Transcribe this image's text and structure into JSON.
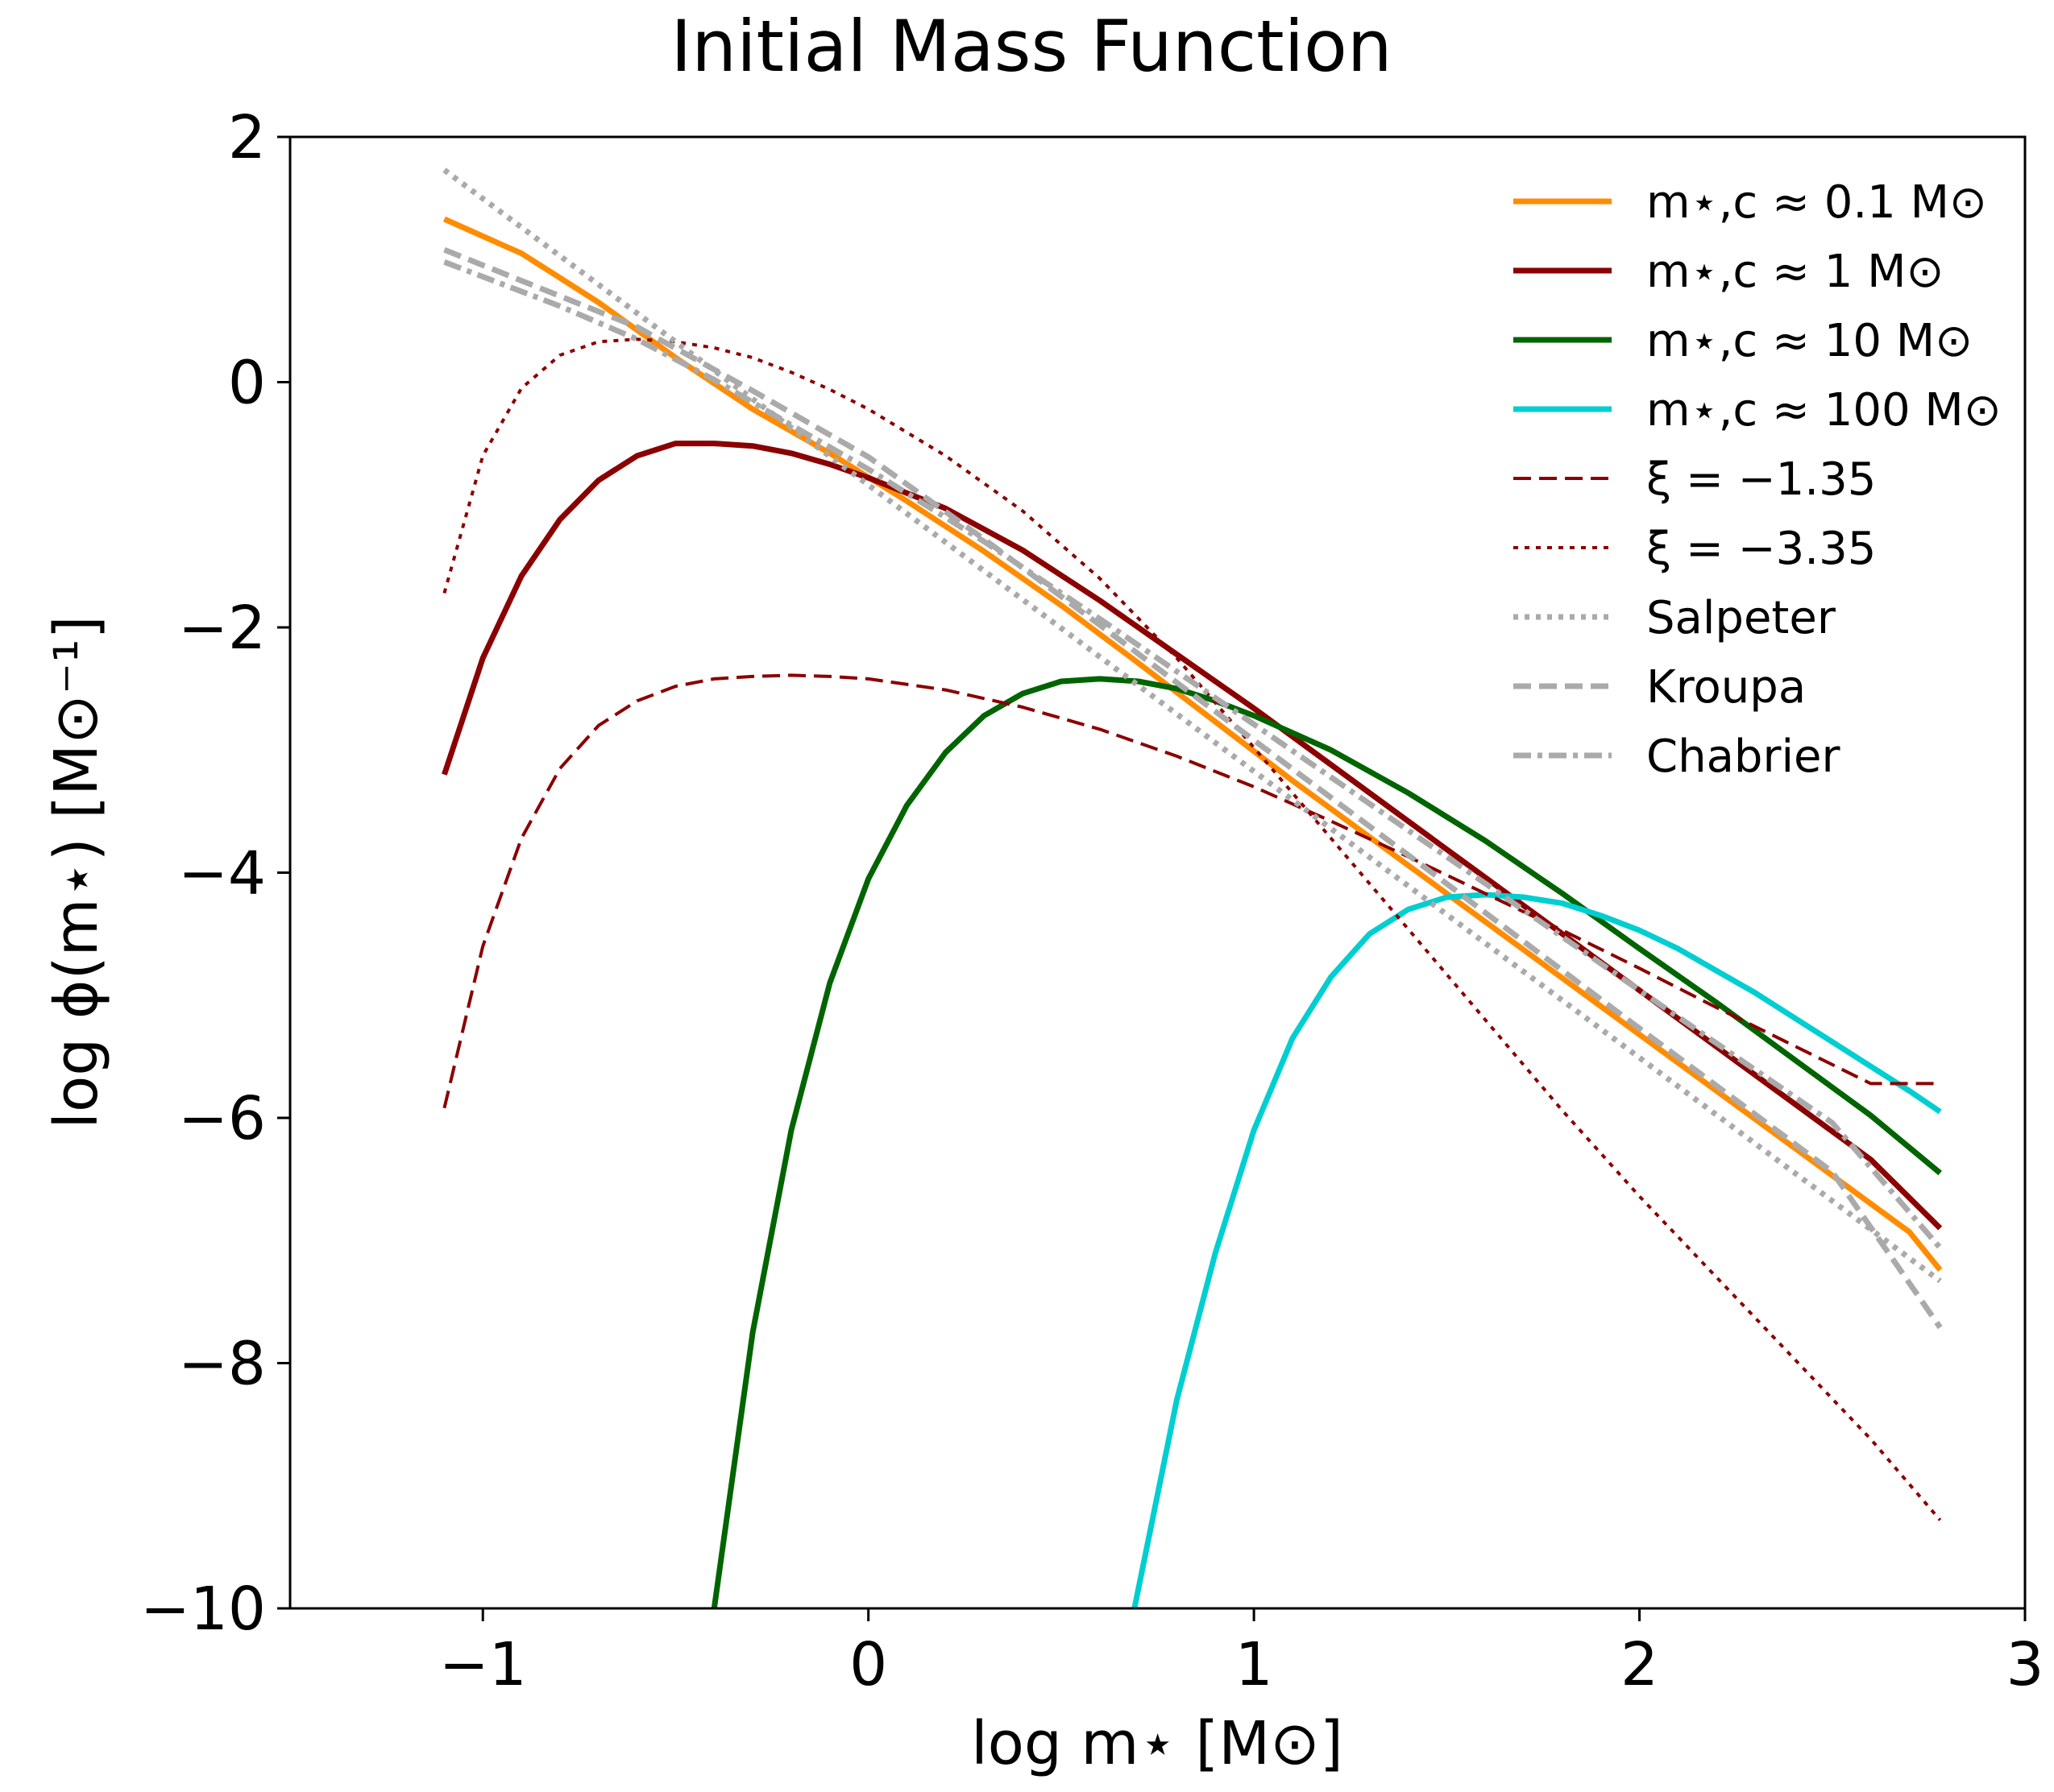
{
  "chart_data": {
    "type": "line",
    "title": "Initial Mass Function",
    "xlabel": "log m⋆  [M⊙]",
    "ylabel": "log ϕ(m⋆) [M⊙⁻¹]",
    "xlim": [
      -1.5,
      3
    ],
    "ylim": [
      -10,
      2
    ],
    "xticks": [
      -1,
      0,
      1,
      2,
      3
    ],
    "yticks": [
      -10,
      -8,
      -6,
      -4,
      -2,
      0,
      2
    ],
    "xtick_labels": [
      "−1",
      "0",
      "1",
      "2",
      "3"
    ],
    "ytick_labels": [
      "−10",
      "−8",
      "−6",
      "−4",
      "−2",
      "0",
      "2"
    ],
    "legend_position": "top-right",
    "series": [
      {
        "name": "m⋆,c ≈ 0.1 M⊙",
        "color": "#ff8c00",
        "style": "solid",
        "thick": true,
        "x": [
          -1.1,
          -0.9,
          -0.7,
          -0.5,
          -0.3,
          -0.1,
          0.1,
          0.3,
          0.5,
          0.7,
          0.9,
          1.1,
          1.3,
          1.5,
          1.7,
          1.9,
          2.1,
          2.3,
          2.5,
          2.7,
          2.78
        ],
        "y": [
          1.33,
          1.05,
          0.65,
          0.2,
          -0.22,
          -0.58,
          -0.97,
          -1.38,
          -1.82,
          -2.29,
          -2.77,
          -3.25,
          -3.71,
          -4.17,
          -4.63,
          -5.09,
          -5.55,
          -6.01,
          -6.47,
          -6.93,
          -7.24
        ]
      },
      {
        "name": "m⋆,c ≈ 1 M⊙",
        "color": "#8b0000",
        "style": "solid",
        "thick": true,
        "x": [
          -1.1,
          -1.0,
          -0.9,
          -0.8,
          -0.7,
          -0.6,
          -0.5,
          -0.4,
          -0.3,
          -0.2,
          -0.1,
          0.0,
          0.2,
          0.4,
          0.6,
          0.8,
          1.0,
          1.2,
          1.4,
          1.6,
          1.8,
          2.0,
          2.2,
          2.4,
          2.6,
          2.78
        ],
        "y": [
          -3.2,
          -2.25,
          -1.58,
          -1.12,
          -0.8,
          -0.6,
          -0.5,
          -0.5,
          -0.52,
          -0.58,
          -0.67,
          -0.78,
          -1.03,
          -1.37,
          -1.78,
          -2.22,
          -2.66,
          -3.12,
          -3.58,
          -4.04,
          -4.5,
          -4.96,
          -5.42,
          -5.88,
          -6.34,
          -6.9
        ]
      },
      {
        "name": "m⋆,c ≈ 10 M⊙",
        "color": "#006400",
        "style": "solid",
        "thick": true,
        "x": [
          -0.4,
          -0.3,
          -0.2,
          -0.1,
          0.0,
          0.1,
          0.2,
          0.3,
          0.4,
          0.5,
          0.6,
          0.7,
          0.8,
          0.9,
          1.0,
          1.2,
          1.4,
          1.6,
          1.8,
          2.0,
          2.2,
          2.4,
          2.6,
          2.78
        ],
        "y": [
          -10.0,
          -7.75,
          -6.1,
          -4.9,
          -4.05,
          -3.45,
          -3.02,
          -2.72,
          -2.54,
          -2.44,
          -2.42,
          -2.44,
          -2.5,
          -2.6,
          -2.72,
          -3.0,
          -3.35,
          -3.74,
          -4.17,
          -4.62,
          -5.06,
          -5.52,
          -5.98,
          -6.45
        ]
      },
      {
        "name": "m⋆,c ≈ 100 M⊙",
        "color": "#00ced1",
        "style": "solid",
        "thick": true,
        "x": [
          0.69,
          0.8,
          0.9,
          1.0,
          1.1,
          1.2,
          1.3,
          1.4,
          1.5,
          1.6,
          1.7,
          1.8,
          1.9,
          2.0,
          2.1,
          2.2,
          2.3,
          2.4,
          2.5,
          2.6,
          2.7,
          2.78
        ],
        "y": [
          -10.0,
          -8.3,
          -7.1,
          -6.1,
          -5.35,
          -4.85,
          -4.5,
          -4.3,
          -4.2,
          -4.18,
          -4.2,
          -4.25,
          -4.35,
          -4.47,
          -4.62,
          -4.8,
          -4.98,
          -5.18,
          -5.38,
          -5.58,
          -5.78,
          -5.95
        ]
      },
      {
        "name": "ξ = −1.35",
        "color": "#8b0000",
        "style": "dashed",
        "thick": false,
        "x": [
          -1.1,
          -1.0,
          -0.9,
          -0.8,
          -0.7,
          -0.6,
          -0.5,
          -0.4,
          -0.3,
          -0.2,
          -0.1,
          0.0,
          0.2,
          0.4,
          0.6,
          0.8,
          1.0,
          1.2,
          1.4,
          1.6,
          1.8,
          2.0,
          2.2,
          2.4,
          2.6,
          2.78
        ],
        "y": [
          -5.92,
          -4.6,
          -3.72,
          -3.15,
          -2.8,
          -2.6,
          -2.48,
          -2.42,
          -2.4,
          -2.39,
          -2.4,
          -2.42,
          -2.51,
          -2.65,
          -2.83,
          -3.05,
          -3.3,
          -3.58,
          -3.87,
          -4.17,
          -4.47,
          -4.78,
          -5.1,
          -5.41,
          -5.72,
          -5.72
        ]
      },
      {
        "name": "ξ = −3.35",
        "color": "#8b0000",
        "style": "dotted",
        "thick": false,
        "x": [
          -1.1,
          -1.0,
          -0.9,
          -0.8,
          -0.7,
          -0.6,
          -0.5,
          -0.4,
          -0.3,
          -0.2,
          -0.1,
          0.0,
          0.2,
          0.4,
          0.6,
          0.8,
          1.0,
          1.2,
          1.4,
          1.6,
          1.8,
          2.0,
          2.2,
          2.4,
          2.6,
          2.78
        ],
        "y": [
          -1.72,
          -0.6,
          -0.05,
          0.22,
          0.33,
          0.35,
          0.33,
          0.28,
          0.2,
          0.08,
          -0.06,
          -0.22,
          -0.6,
          -1.05,
          -1.6,
          -2.25,
          -2.98,
          -3.72,
          -4.46,
          -5.2,
          -5.94,
          -6.64,
          -7.3,
          -7.96,
          -8.62,
          -9.28
        ]
      },
      {
        "name": "Salpeter",
        "color": "#aaaaaa",
        "style": "dotted",
        "thick": true,
        "x": [
          -1.1,
          2.78
        ],
        "y": [
          1.73,
          -7.33
        ]
      },
      {
        "name": "Kroupa",
        "color": "#aaaaaa",
        "style": "dashed",
        "thick": true,
        "x": [
          -1.1,
          -0.6,
          -0.3,
          0.0,
          0.3,
          0.6,
          1.0,
          1.5,
          2.0,
          2.5,
          2.78
        ],
        "y": [
          1.08,
          0.45,
          -0.07,
          -0.61,
          -1.28,
          -1.98,
          -2.92,
          -4.09,
          -5.27,
          -6.44,
          -7.71
        ]
      },
      {
        "name": "Chabrier",
        "color": "#aaaaaa",
        "style": "dashdot",
        "thick": true,
        "x": [
          -1.1,
          -0.8,
          -0.6,
          -0.4,
          -0.2,
          0.0,
          0.3,
          0.6,
          1.0,
          1.5,
          2.0,
          2.5,
          2.78
        ],
        "y": [
          0.98,
          0.62,
          0.35,
          0.02,
          -0.35,
          -0.71,
          -1.3,
          -1.93,
          -2.79,
          -3.87,
          -4.96,
          -6.04,
          -7.06
        ]
      }
    ]
  }
}
